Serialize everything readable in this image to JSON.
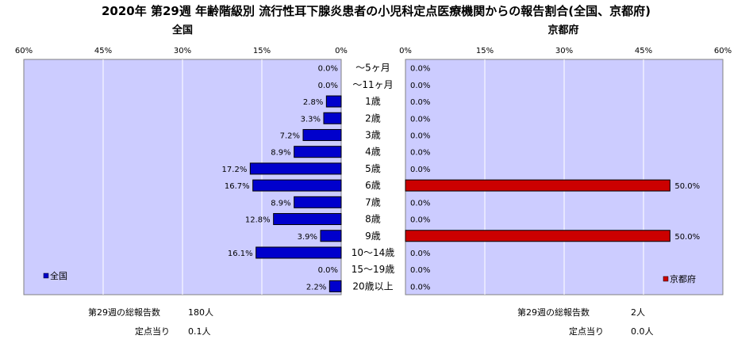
{
  "title": "2020年 第29週 年齢階級別 流行性耳下腺炎患者の小児科定点医療機関からの報告割合(全国、京都府)",
  "chart_data": {
    "type": "bar",
    "orientation": "horizontal-butterfly",
    "categories": [
      "～5ヶ月",
      "～11ヶ月",
      "1歳",
      "2歳",
      "3歳",
      "4歳",
      "5歳",
      "6歳",
      "7歳",
      "8歳",
      "9歳",
      "10～14歳",
      "15～19歳",
      "20歳以上"
    ],
    "xlim": [
      0,
      60
    ],
    "ticks": [
      "60%",
      "45%",
      "30%",
      "15%",
      "0%"
    ],
    "ticks_right": [
      "0%",
      "15%",
      "30%",
      "45%",
      "60%"
    ],
    "grid": true,
    "series": [
      {
        "name": "全国",
        "panel_title": "全国",
        "color": "#0000CC",
        "values": [
          0.0,
          0.0,
          2.8,
          3.3,
          7.2,
          8.9,
          17.2,
          16.7,
          8.9,
          12.8,
          3.9,
          16.1,
          0.0,
          2.2
        ],
        "labels": [
          "0.0%",
          "0.0%",
          "2.8%",
          "3.3%",
          "7.2%",
          "8.9%",
          "17.2%",
          "16.7%",
          "8.9%",
          "12.8%",
          "3.9%",
          "16.1%",
          "0.0%",
          "2.2%"
        ],
        "legend": "全国",
        "legend_position": "bottom-left"
      },
      {
        "name": "京都府",
        "panel_title": "京都府",
        "color": "#CC0000",
        "values": [
          0.0,
          0.0,
          0.0,
          0.0,
          0.0,
          0.0,
          0.0,
          50.0,
          0.0,
          0.0,
          50.0,
          0.0,
          0.0,
          0.0
        ],
        "labels": [
          "0.0%",
          "0.0%",
          "0.0%",
          "0.0%",
          "0.0%",
          "0.0%",
          "0.0%",
          "50.0%",
          "0.0%",
          "0.0%",
          "50.0%",
          "0.0%",
          "0.0%",
          "0.0%"
        ],
        "legend": "京都府",
        "legend_position": "bottom-right"
      }
    ]
  },
  "footer": {
    "left": {
      "total_label": "第29週の総報告数",
      "total_value": "180人",
      "per_label": "定点当り",
      "per_value": "0.1人"
    },
    "right": {
      "total_label": "第29週の総報告数",
      "total_value": "2人",
      "per_label": "定点当り",
      "per_value": "0.0人"
    }
  },
  "colors": {
    "plot_background": "#CCCCFF",
    "gridline": "#FFFFFF"
  }
}
